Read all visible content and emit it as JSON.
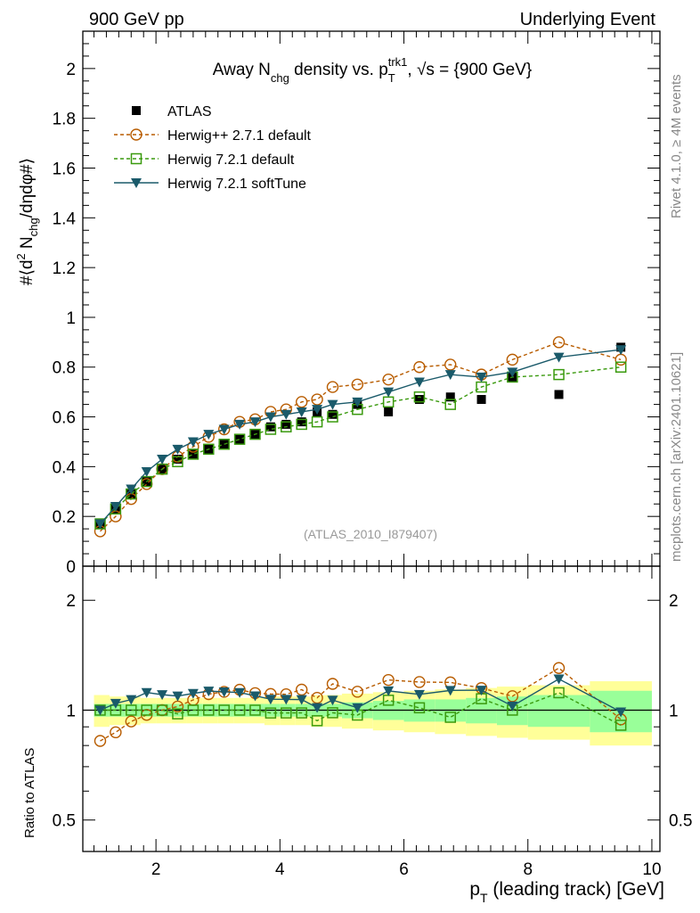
{
  "header": {
    "left": "900 GeV pp",
    "right": "Underlying Event"
  },
  "side": {
    "rivet": "Rivet 4.1.0, ≥ 4M events",
    "mcplots": "mcplots.cern.ch [arXiv:2401.10621]"
  },
  "chart_data": {
    "type": "line",
    "title": "Away N_chg density vs. p_T^trk1, √s = {900 GeV}",
    "title_parts": {
      "a": "Away N",
      "b": "chg",
      "c": " density vs. p",
      "d": "T",
      "e": "trk1",
      "f": ", √s = {900 GeV}"
    },
    "ylabel_parts": {
      "a": "#⟨d",
      "b": "2",
      "c": " N",
      "d": "chg",
      "e": "/dηdφ#⟩"
    },
    "xlabel_parts": {
      "a": "p",
      "b": "T",
      "c": " (leading track) [GeV]"
    },
    "ratio_ylabel": "Ratio to ATLAS",
    "analysis": "(ATLAS_2010_I879407)",
    "xlim": [
      0.82,
      10.13
    ],
    "ylim": [
      0,
      2.15
    ],
    "ratio_ylim": [
      0.41,
      2.48
    ],
    "xticks": [
      "2",
      "4",
      "6",
      "8",
      "10"
    ],
    "yticks": [
      "0",
      "0.2",
      "0.4",
      "0.6",
      "0.8",
      "1",
      "1.2",
      "1.4",
      "1.6",
      "1.8",
      "2"
    ],
    "ratio_yticks": [
      "0.5",
      "1",
      "2"
    ],
    "x": [
      1.1,
      1.35,
      1.6,
      1.85,
      2.1,
      2.35,
      2.6,
      2.85,
      3.1,
      3.35,
      3.6,
      3.85,
      4.1,
      4.35,
      4.6,
      4.85,
      5.25,
      5.75,
      6.25,
      6.75,
      7.25,
      7.75,
      8.5,
      9.5
    ],
    "xedges": [
      1.0,
      1.25,
      1.5,
      1.75,
      2.0,
      2.25,
      2.5,
      2.75,
      3.0,
      3.25,
      3.5,
      3.75,
      4.0,
      4.25,
      4.5,
      4.75,
      5.0,
      5.5,
      6.0,
      6.5,
      7.0,
      7.5,
      8.0,
      9.0,
      10.0
    ],
    "band_inner": [
      0.04,
      0.04,
      0.04,
      0.04,
      0.04,
      0.04,
      0.04,
      0.04,
      0.04,
      0.04,
      0.04,
      0.04,
      0.04,
      0.04,
      0.04,
      0.04,
      0.05,
      0.06,
      0.07,
      0.07,
      0.08,
      0.09,
      0.1,
      0.13
    ],
    "band_outer": [
      0.1,
      0.09,
      0.09,
      0.08,
      0.08,
      0.08,
      0.08,
      0.08,
      0.08,
      0.08,
      0.08,
      0.09,
      0.09,
      0.09,
      0.1,
      0.1,
      0.11,
      0.12,
      0.13,
      0.14,
      0.15,
      0.16,
      0.17,
      0.2
    ],
    "series": [
      {
        "name": "ATLAS",
        "color": "#000000",
        "marker": "square",
        "values": [
          0.17,
          0.23,
          0.29,
          0.34,
          0.39,
          0.43,
          0.45,
          0.47,
          0.49,
          0.51,
          0.53,
          0.56,
          0.57,
          0.58,
          0.62,
          0.61,
          0.65,
          0.62,
          0.67,
          0.68,
          0.67,
          0.76,
          0.69,
          0.88
        ]
      },
      {
        "name": "Herwig++ 2.7.1 default",
        "color": "#b85c00",
        "marker": "open-circle",
        "dash": "4,3",
        "values": [
          0.14,
          0.2,
          0.27,
          0.33,
          0.39,
          0.44,
          0.48,
          0.52,
          0.55,
          0.58,
          0.59,
          0.62,
          0.63,
          0.66,
          0.67,
          0.72,
          0.73,
          0.75,
          0.8,
          0.81,
          0.77,
          0.83,
          0.9,
          0.83
        ]
      },
      {
        "name": "Herwig 7.2.1 default",
        "color": "#3a9a0e",
        "marker": "open-square",
        "dash": "4,3",
        "values": [
          0.17,
          0.23,
          0.29,
          0.34,
          0.39,
          0.42,
          0.45,
          0.47,
          0.49,
          0.51,
          0.53,
          0.55,
          0.56,
          0.57,
          0.58,
          0.6,
          0.63,
          0.66,
          0.68,
          0.65,
          0.72,
          0.76,
          0.77,
          0.8
        ]
      },
      {
        "name": "Herwig 7.2.1 softTune",
        "color": "#1a5a6a",
        "marker": "triangle-down",
        "values": [
          0.17,
          0.24,
          0.31,
          0.38,
          0.43,
          0.47,
          0.5,
          0.53,
          0.55,
          0.57,
          0.58,
          0.6,
          0.61,
          0.62,
          0.63,
          0.65,
          0.66,
          0.7,
          0.74,
          0.77,
          0.76,
          0.78,
          0.84,
          0.87
        ]
      }
    ]
  }
}
